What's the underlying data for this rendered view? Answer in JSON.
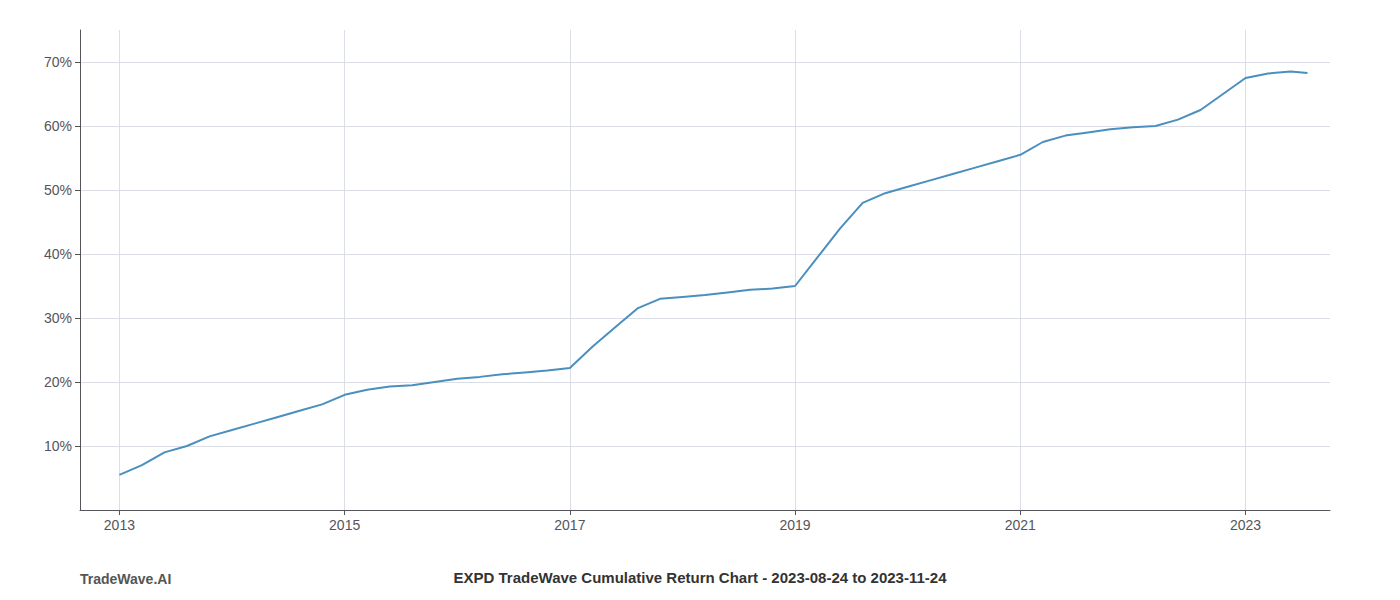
{
  "chart_data": {
    "type": "line",
    "title": "EXPD TradeWave Cumulative Return Chart - 2023-08-24 to 2023-11-24",
    "annotations": [
      "TradeWave.AI"
    ],
    "color": "#4a8fbe",
    "x": [
      2013.0,
      2013.2,
      2013.4,
      2013.6,
      2013.8,
      2014.0,
      2014.2,
      2014.4,
      2014.6,
      2014.8,
      2015.0,
      2015.2,
      2015.4,
      2015.6,
      2015.8,
      2016.0,
      2016.2,
      2016.4,
      2016.6,
      2016.8,
      2017.0,
      2017.2,
      2017.4,
      2017.6,
      2017.8,
      2018.0,
      2018.2,
      2018.4,
      2018.6,
      2018.8,
      2019.0,
      2019.2,
      2019.4,
      2019.6,
      2019.8,
      2020.0,
      2020.2,
      2020.4,
      2020.6,
      2020.8,
      2021.0,
      2021.2,
      2021.4,
      2021.6,
      2021.8,
      2022.0,
      2022.2,
      2022.4,
      2022.6,
      2022.8,
      2023.0,
      2023.2,
      2023.4,
      2023.55
    ],
    "values": [
      0.055,
      0.07,
      0.09,
      0.1,
      0.115,
      0.125,
      0.135,
      0.145,
      0.155,
      0.165,
      0.18,
      0.188,
      0.193,
      0.195,
      0.2,
      0.205,
      0.208,
      0.212,
      0.215,
      0.218,
      0.222,
      0.255,
      0.285,
      0.315,
      0.33,
      0.333,
      0.336,
      0.34,
      0.344,
      0.346,
      0.35,
      0.395,
      0.44,
      0.48,
      0.495,
      0.505,
      0.515,
      0.525,
      0.535,
      0.545,
      0.555,
      0.575,
      0.585,
      0.59,
      0.595,
      0.598,
      0.6,
      0.61,
      0.625,
      0.65,
      0.675,
      0.682,
      0.685,
      0.683
    ],
    "xlim": [
      2012.65,
      2023.75
    ],
    "xticks": [
      2013,
      2015,
      2017,
      2019,
      2021,
      2023
    ],
    "ylim": [
      0.0,
      0.75
    ],
    "yticks": [
      {
        "value": 0.1,
        "label": "10%"
      },
      {
        "value": 0.2,
        "label": "20%"
      },
      {
        "value": 0.3,
        "label": "30%"
      },
      {
        "value": 0.4,
        "label": "40%"
      },
      {
        "value": 0.5,
        "label": "50%"
      },
      {
        "value": 0.6,
        "label": "60%"
      },
      {
        "value": 0.7,
        "label": "70%"
      }
    ],
    "grid": true
  }
}
